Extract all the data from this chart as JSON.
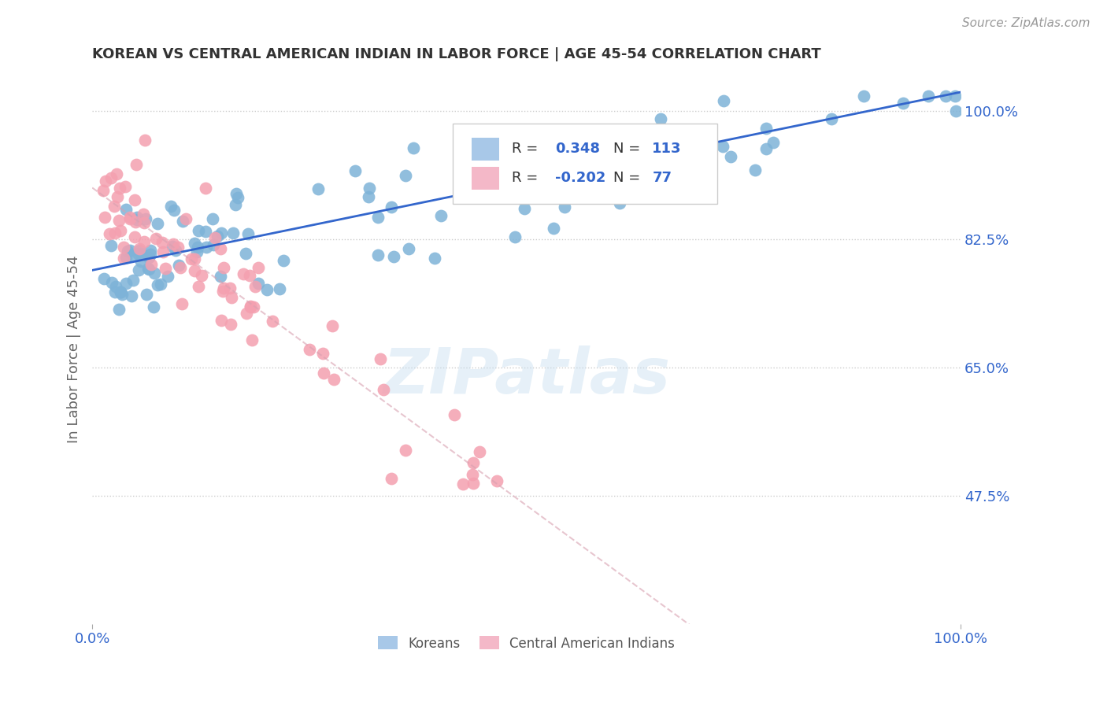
{
  "title": "KOREAN VS CENTRAL AMERICAN INDIAN IN LABOR FORCE | AGE 45-54 CORRELATION CHART",
  "source": "Source: ZipAtlas.com",
  "ylabel": "In Labor Force | Age 45-54",
  "xmin": 0.0,
  "xmax": 1.0,
  "ymin": 0.3,
  "ymax": 1.05,
  "yticks": [
    0.475,
    0.65,
    0.825,
    1.0
  ],
  "yticklabels": [
    "47.5%",
    "65.0%",
    "82.5%",
    "100.0%"
  ],
  "xticks": [
    0.0,
    1.0
  ],
  "xticklabels": [
    "0.0%",
    "100.0%"
  ],
  "korean_R": 0.348,
  "korean_N": 113,
  "caindian_R": -0.202,
  "caindian_N": 77,
  "korean_color": "#7eb3d8",
  "caindian_color": "#f4a0b0",
  "korean_trend_color": "#3366cc",
  "caindian_trend_color": "#d8a0b0",
  "bg_color": "#ffffff",
  "grid_color": "#cccccc",
  "title_color": "#333333",
  "axis_label_color": "#3366cc",
  "legend_box_color_korean": "#a8c8e8",
  "legend_box_color_caindian": "#f4b8c8",
  "watermark": "ZIPatlas"
}
